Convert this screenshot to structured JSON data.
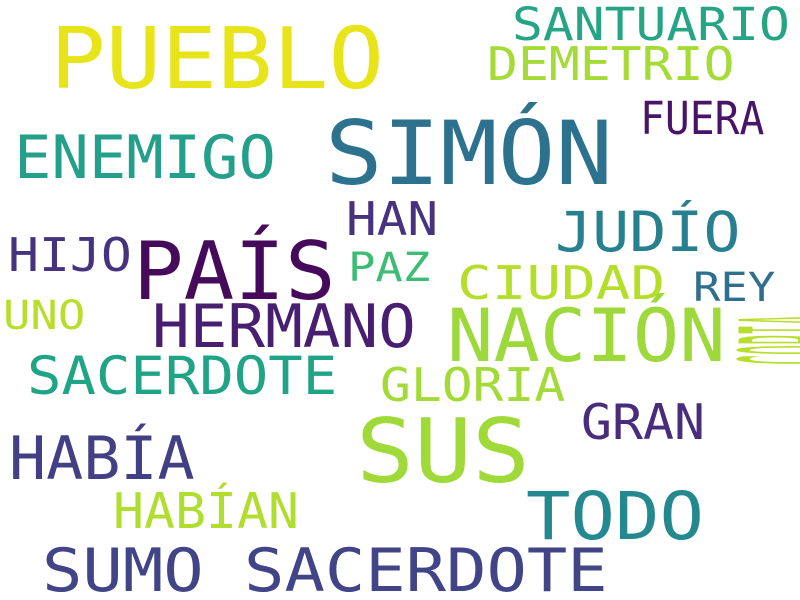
{
  "words": [
    {
      "text": "PUEBLO",
      "color": "#e7e419"
    },
    {
      "text": "SANTUARIO",
      "color": "#25a584"
    },
    {
      "text": "DEMETRIO",
      "color": "#a5db36"
    },
    {
      "text": "SIMÓN",
      "color": "#2c728e"
    },
    {
      "text": "FUERA",
      "color": "#481467"
    },
    {
      "text": "ENEMIGO",
      "color": "#24a08a"
    },
    {
      "text": "HAN",
      "color": "#46327e"
    },
    {
      "text": "JUDÍO",
      "color": "#27808e"
    },
    {
      "text": "HIJO",
      "color": "#46337e"
    },
    {
      "text": "PAÍS",
      "color": "#450b5a"
    },
    {
      "text": "PAZ",
      "color": "#3dbc74"
    },
    {
      "text": "CIUDAD",
      "color": "#b5de2b"
    },
    {
      "text": "REY",
      "color": "#2e6f8e"
    },
    {
      "text": "UNO",
      "color": "#b8de29"
    },
    {
      "text": "HERMANO",
      "color": "#481f70"
    },
    {
      "text": "NACIÓN",
      "color": "#9dd93b"
    },
    {
      "text": "COPIA",
      "color": "#b6de2b"
    },
    {
      "text": "SACERDOTE",
      "color": "#20a486"
    },
    {
      "text": "GLORIA",
      "color": "#a2da37"
    },
    {
      "text": "GRAN",
      "color": "#472d7b"
    },
    {
      "text": "SUS",
      "color": "#a0da39"
    },
    {
      "text": "HABÍA",
      "color": "#423f85"
    },
    {
      "text": "HABÍAN",
      "color": "#b0dd2f"
    },
    {
      "text": "TODO",
      "color": "#23898e"
    },
    {
      "text": "SUMO SACERDOTE",
      "color": "#414487"
    }
  ]
}
